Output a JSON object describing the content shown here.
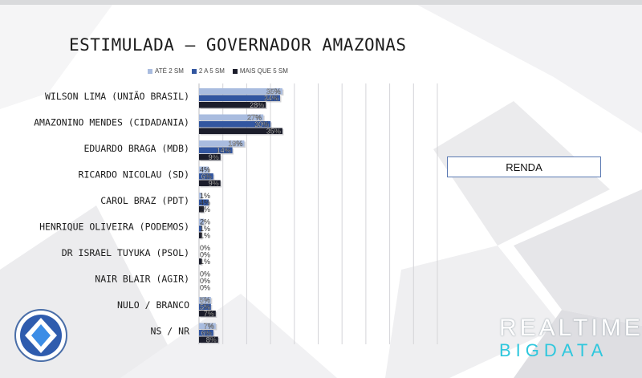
{
  "title": "ESTIMULADA – GOVERNADOR AMAZONAS",
  "renda_label": "RENDA",
  "brand": {
    "line1": "REALTIME",
    "line2": "BIGDATA"
  },
  "colors": {
    "series1": "#a9bcdf",
    "series2": "#3256a0",
    "series3": "#1b1d2b"
  },
  "chart_data": {
    "type": "bar",
    "orientation": "horizontal",
    "categories": [
      "WILSON LIMA (UNIÃO BRASIL)",
      "AMAZONINO MENDES (CIDADANIA)",
      "EDUARDO BRAGA (MDB)",
      "RICARDO NICOLAU (SD)",
      "CAROL BRAZ (PDT)",
      "HENRIQUE OLIVEIRA (PODEMOS)",
      "DR ISRAEL TUYUKA (PSOL)",
      "NAIR BLAIR (AGIR)",
      "NULO / BRANCO",
      "NS / NR"
    ],
    "series": [
      {
        "name": "ATÉ 2 SM",
        "values": [
          35,
          27,
          19,
          4,
          1,
          2,
          0,
          0,
          5,
          7
        ]
      },
      {
        "name": "2 A 5 SM",
        "values": [
          34,
          30,
          14,
          6,
          4,
          1,
          0,
          0,
          5,
          6
        ]
      },
      {
        "name": "MAIS QUE 5 SM",
        "values": [
          28,
          35,
          9,
          9,
          2,
          1,
          1,
          0,
          7,
          8
        ]
      }
    ],
    "value_suffix": "%",
    "xlim": [
      0,
      100
    ],
    "grid": true,
    "legend_position": "top"
  }
}
